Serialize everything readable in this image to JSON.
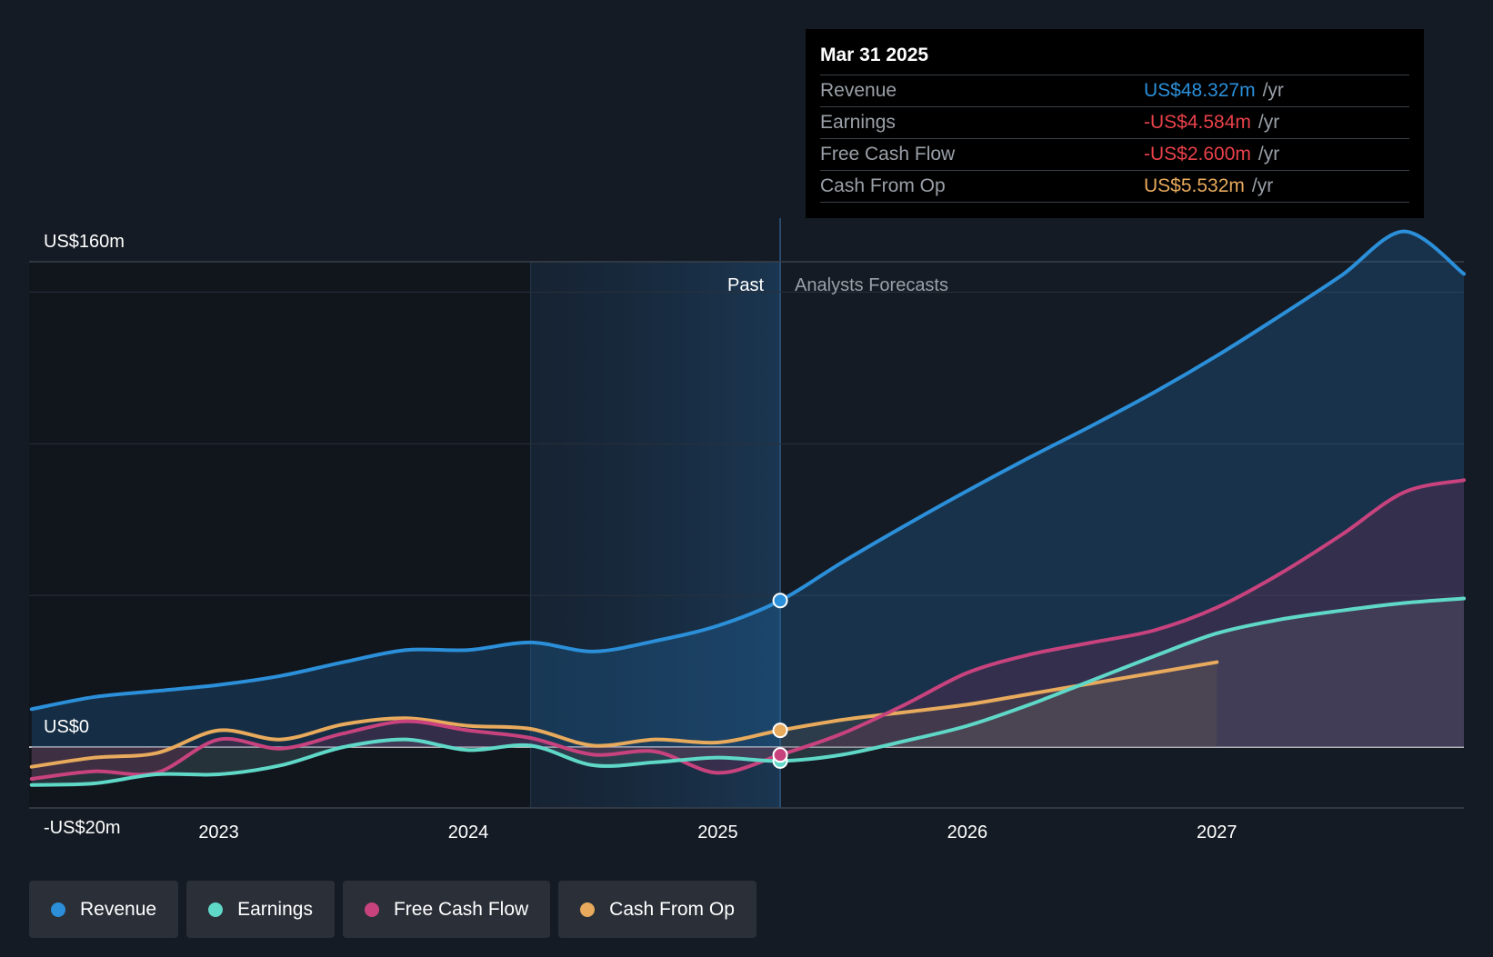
{
  "tooltip": {
    "date": "Mar 31 2025",
    "rows": [
      {
        "label": "Revenue",
        "value": "US$48.327m",
        "unit": "/yr",
        "color": "#2b8fd9"
      },
      {
        "label": "Earnings",
        "value": "-US$4.584m",
        "unit": "/yr",
        "color": "#e8414a"
      },
      {
        "label": "Free Cash Flow",
        "value": "-US$2.600m",
        "unit": "/yr",
        "color": "#e8414a"
      },
      {
        "label": "Cash From Op",
        "value": "US$5.532m",
        "unit": "/yr",
        "color": "#e8aa5c"
      }
    ]
  },
  "labels": {
    "past": "Past",
    "forecast": "Analysts Forecasts"
  },
  "legend": [
    {
      "label": "Revenue",
      "color": "#2b8fd9"
    },
    {
      "label": "Earnings",
      "color": "#5fd8c8"
    },
    {
      "label": "Free Cash Flow",
      "color": "#c8437e"
    },
    {
      "label": "Cash From Op",
      "color": "#e8aa5c"
    }
  ],
  "chart_data": {
    "type": "line",
    "y_tick_labels": [
      {
        "value": 160,
        "label": "US$160m"
      },
      {
        "value": 0,
        "label": "US$0"
      },
      {
        "value": -20,
        "label": "-US$20m"
      }
    ],
    "ylim": [
      -20,
      160
    ],
    "xlim": [
      2022.24,
      2027.99
    ],
    "x_ticks": [
      {
        "value": 2023.0,
        "label": "2023"
      },
      {
        "value": 2024.0,
        "label": "2024"
      },
      {
        "value": 2025.0,
        "label": "2025"
      },
      {
        "value": 2026.0,
        "label": "2026"
      },
      {
        "value": 2027.0,
        "label": "2027"
      }
    ],
    "grid_values": [
      150,
      100,
      50
    ],
    "past_start": 2024.25,
    "forecast_start": 2025.25,
    "series": [
      {
        "name": "Revenue",
        "color": "#2b8fd9",
        "fill": true,
        "marker": [
          2025.25,
          48.3
        ],
        "points": [
          [
            2022.25,
            12.5
          ],
          [
            2022.5,
            16.5
          ],
          [
            2022.75,
            18.5
          ],
          [
            2023.0,
            20.5
          ],
          [
            2023.25,
            23.5
          ],
          [
            2023.5,
            28.0
          ],
          [
            2023.75,
            32.0
          ],
          [
            2024.0,
            32.0
          ],
          [
            2024.25,
            34.5
          ],
          [
            2024.5,
            31.5
          ],
          [
            2024.75,
            35.0
          ],
          [
            2025.0,
            40.0
          ],
          [
            2025.25,
            48.3
          ],
          [
            2025.5,
            61.0
          ],
          [
            2025.75,
            73.0
          ],
          [
            2026.0,
            84.5
          ],
          [
            2026.25,
            95.5
          ],
          [
            2026.5,
            106.0
          ],
          [
            2026.75,
            117.0
          ],
          [
            2027.0,
            129.0
          ],
          [
            2027.25,
            142.0
          ],
          [
            2027.5,
            155.5
          ],
          [
            2027.75,
            170.0
          ],
          [
            2027.99,
            156.0
          ]
        ]
      },
      {
        "name": "Earnings",
        "color": "#5fd8c8",
        "fill": true,
        "marker": [
          2025.25,
          -4.6
        ],
        "points": [
          [
            2022.25,
            -12.5
          ],
          [
            2022.5,
            -12.0
          ],
          [
            2022.75,
            -9.0
          ],
          [
            2023.0,
            -9.0
          ],
          [
            2023.25,
            -6.0
          ],
          [
            2023.5,
            0.0
          ],
          [
            2023.75,
            2.5
          ],
          [
            2024.0,
            -1.0
          ],
          [
            2024.25,
            0.5
          ],
          [
            2024.5,
            -6.0
          ],
          [
            2024.75,
            -5.0
          ],
          [
            2025.0,
            -3.5
          ],
          [
            2025.25,
            -4.6
          ],
          [
            2025.5,
            -2.5
          ],
          [
            2025.75,
            2.0
          ],
          [
            2026.0,
            7.0
          ],
          [
            2026.25,
            14.0
          ],
          [
            2026.5,
            22.0
          ],
          [
            2026.75,
            30.0
          ],
          [
            2027.0,
            37.5
          ],
          [
            2027.25,
            42.0
          ],
          [
            2027.5,
            45.0
          ],
          [
            2027.75,
            47.5
          ],
          [
            2027.99,
            49.0
          ]
        ]
      },
      {
        "name": "Free Cash Flow",
        "color": "#c8437e",
        "fill": true,
        "marker": [
          2025.25,
          -2.6
        ],
        "points": [
          [
            2022.25,
            -10.5
          ],
          [
            2022.5,
            -8.0
          ],
          [
            2022.75,
            -8.5
          ],
          [
            2023.0,
            2.5
          ],
          [
            2023.25,
            -0.5
          ],
          [
            2023.5,
            4.5
          ],
          [
            2023.75,
            8.5
          ],
          [
            2024.0,
            5.5
          ],
          [
            2024.25,
            3.0
          ],
          [
            2024.5,
            -2.5
          ],
          [
            2024.75,
            -1.5
          ],
          [
            2025.0,
            -8.5
          ],
          [
            2025.25,
            -2.6
          ],
          [
            2025.5,
            4.5
          ],
          [
            2025.75,
            14.0
          ],
          [
            2026.0,
            24.5
          ],
          [
            2026.25,
            30.5
          ],
          [
            2026.5,
            34.5
          ],
          [
            2026.75,
            38.5
          ],
          [
            2027.0,
            46.0
          ],
          [
            2027.25,
            57.0
          ],
          [
            2027.5,
            70.0
          ],
          [
            2027.75,
            84.0
          ],
          [
            2027.99,
            88.0
          ]
        ]
      },
      {
        "name": "Cash From Op",
        "color": "#e8aa5c",
        "fill": false,
        "marker": [
          2025.25,
          5.5
        ],
        "points": [
          [
            2022.25,
            -6.5
          ],
          [
            2022.5,
            -3.5
          ],
          [
            2022.75,
            -2.0
          ],
          [
            2023.0,
            5.5
          ],
          [
            2023.25,
            2.5
          ],
          [
            2023.5,
            7.5
          ],
          [
            2023.75,
            9.5
          ],
          [
            2024.0,
            7.0
          ],
          [
            2024.25,
            6.0
          ],
          [
            2024.5,
            0.5
          ],
          [
            2024.75,
            2.5
          ],
          [
            2025.0,
            1.5
          ],
          [
            2025.25,
            5.5
          ],
          [
            2025.5,
            9.0
          ],
          [
            2025.75,
            11.5
          ],
          [
            2026.0,
            14.0
          ],
          [
            2026.25,
            17.5
          ],
          [
            2026.5,
            21.0
          ],
          [
            2026.75,
            24.5
          ],
          [
            2027.0,
            28.0
          ]
        ]
      }
    ]
  }
}
